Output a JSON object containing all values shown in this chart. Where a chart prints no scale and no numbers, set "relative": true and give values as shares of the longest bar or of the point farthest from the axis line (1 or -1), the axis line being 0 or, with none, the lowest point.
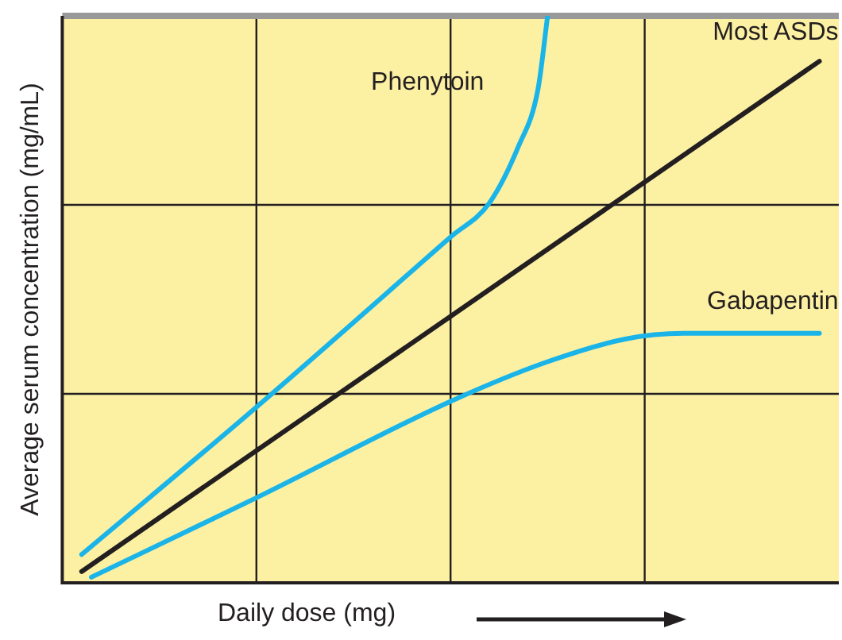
{
  "chart_data": {
    "type": "line",
    "relative": true,
    "xlabel": "Daily dose (mg)",
    "ylabel": "Average serum concentration (mg/mL)",
    "grid": true,
    "legend": false,
    "marker": "none",
    "line_style": "solid",
    "categories": [
      null,
      null,
      null,
      null,
      null,
      null,
      null,
      null,
      null,
      null,
      null,
      null,
      null,
      null,
      null,
      null,
      null,
      null,
      null,
      null,
      null,
      null,
      null,
      null,
      null,
      null,
      null,
      null,
      null,
      null,
      null,
      null,
      null,
      null,
      null,
      null,
      null,
      null,
      null,
      null,
      null,
      null,
      null,
      null,
      null,
      null,
      null,
      null,
      null,
      null,
      null,
      null,
      null,
      null,
      null,
      null,
      null,
      null,
      null,
      null,
      null,
      null,
      null,
      null,
      null,
      null,
      null,
      null,
      null,
      null,
      null,
      null,
      null,
      null,
      null,
      null,
      null,
      null,
      null,
      null,
      null
    ],
    "series": [
      {
        "name": "Phenytoin",
        "color": "#1ab4e8",
        "values": [
          null,
          null,
          0.05,
          null,
          null,
          null,
          null,
          null,
          null,
          null,
          null,
          null,
          null,
          null,
          null,
          null,
          null,
          null,
          null,
          null,
          0.31,
          null,
          null,
          null,
          null,
          null,
          null,
          null,
          null,
          null,
          null,
          null,
          null,
          null,
          null,
          null,
          null,
          null,
          null,
          null,
          0.61,
          null,
          null,
          null,
          0.67,
          null,
          null,
          0.77,
          null,
          0.87,
          1,
          null,
          null,
          null,
          null,
          null,
          null,
          null,
          null,
          null,
          null,
          null,
          null,
          null,
          null,
          null,
          null,
          null,
          null,
          null,
          null,
          null,
          null,
          null,
          null,
          null,
          null,
          null,
          null,
          null,
          null
        ]
      },
      {
        "name": "Most ASDs",
        "color": "#231f20",
        "values": [
          null,
          null,
          0.02,
          null,
          null,
          null,
          null,
          null,
          null,
          null,
          null,
          null,
          null,
          null,
          null,
          null,
          null,
          null,
          null,
          null,
          null,
          null,
          null,
          null,
          null,
          null,
          null,
          null,
          null,
          null,
          null,
          null,
          null,
          null,
          null,
          null,
          null,
          null,
          null,
          null,
          null,
          null,
          null,
          null,
          null,
          null,
          null,
          null,
          null,
          null,
          null,
          null,
          null,
          null,
          null,
          null,
          null,
          null,
          null,
          null,
          null,
          null,
          null,
          null,
          null,
          null,
          null,
          null,
          null,
          null,
          null,
          null,
          null,
          null,
          null,
          null,
          null,
          null,
          0.92,
          null,
          null
        ]
      },
      {
        "name": "Gabapentin",
        "color": "#1ab4e8",
        "values": [
          null,
          null,
          null,
          0.01,
          null,
          null,
          null,
          null,
          null,
          null,
          null,
          null,
          null,
          null,
          null,
          null,
          null,
          null,
          null,
          null,
          0.15,
          null,
          null,
          null,
          null,
          null,
          null,
          null,
          null,
          null,
          null,
          null,
          null,
          null,
          null,
          null,
          null,
          null,
          null,
          null,
          0.32,
          null,
          null,
          null,
          null,
          null,
          null,
          null,
          null,
          null,
          0.39,
          null,
          null,
          null,
          null,
          null,
          null,
          null,
          0.43,
          null,
          null,
          null,
          null,
          null,
          0.44,
          null,
          null,
          null,
          null,
          null,
          null,
          null,
          null,
          null,
          null,
          null,
          null,
          null,
          0.44,
          null,
          null
        ]
      }
    ]
  }
}
